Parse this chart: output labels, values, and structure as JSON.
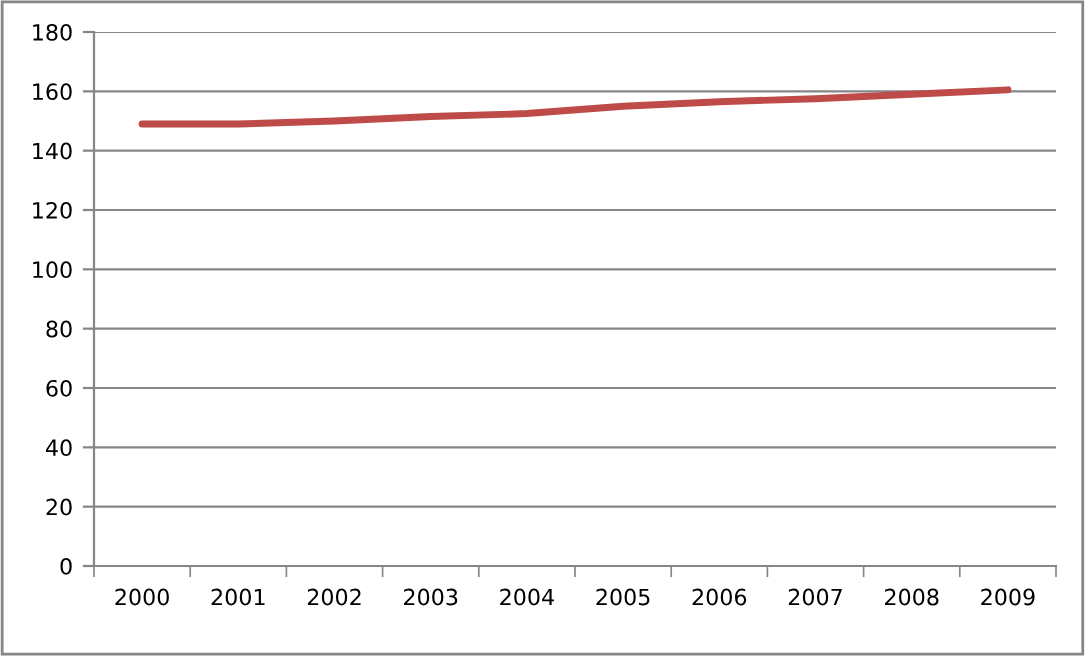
{
  "chart_data": {
    "type": "line",
    "categories": [
      "2000",
      "2001",
      "2002",
      "2003",
      "2004",
      "2005",
      "2006",
      "2007",
      "2008",
      "2009"
    ],
    "series": [
      {
        "color": "#be4b48",
        "values": [
          149,
          149,
          150,
          151.5,
          152.5,
          155,
          156.5,
          157.5,
          159,
          160.5
        ]
      }
    ],
    "ylim": [
      0,
      180
    ],
    "yticks": [
      0,
      20,
      40,
      60,
      80,
      100,
      120,
      140,
      160,
      180
    ],
    "grid": "y"
  }
}
